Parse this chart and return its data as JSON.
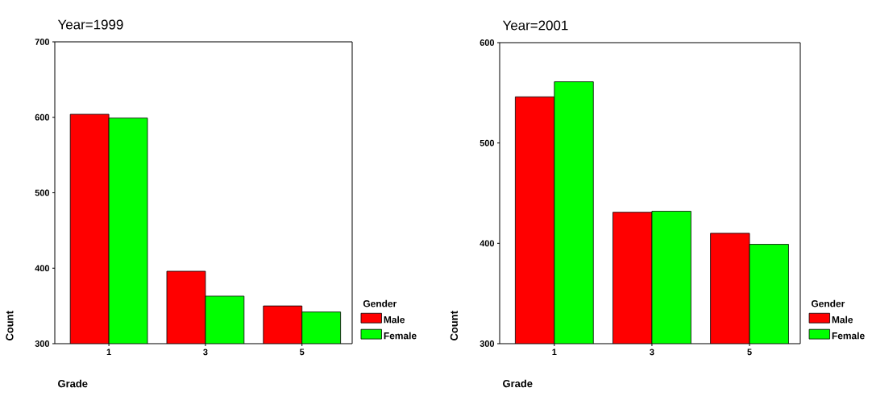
{
  "chart_data": [
    {
      "type": "bar",
      "title": "Year=1999",
      "xlabel": "Grade",
      "ylabel": "Count",
      "categories": [
        "1",
        "3",
        "5"
      ],
      "legend_title": "Gender",
      "legend": "right",
      "ylim": [
        300,
        700
      ],
      "yticks": [
        300,
        400,
        500,
        600,
        700
      ],
      "series": [
        {
          "name": "Male",
          "color": "#ff0000",
          "values": [
            604,
            396,
            350
          ]
        },
        {
          "name": "Female",
          "color": "#00ff00",
          "values": [
            599,
            363,
            342
          ]
        }
      ]
    },
    {
      "type": "bar",
      "title": "Year=2001",
      "xlabel": "Grade",
      "ylabel": "Count",
      "categories": [
        "1",
        "3",
        "5"
      ],
      "legend_title": "Gender",
      "legend": "right",
      "ylim": [
        300,
        600
      ],
      "yticks": [
        300,
        400,
        500,
        600
      ],
      "series": [
        {
          "name": "Male",
          "color": "#ff0000",
          "values": [
            546,
            431,
            410
          ]
        },
        {
          "name": "Female",
          "color": "#00ff00",
          "values": [
            561,
            432,
            399
          ]
        }
      ]
    }
  ]
}
